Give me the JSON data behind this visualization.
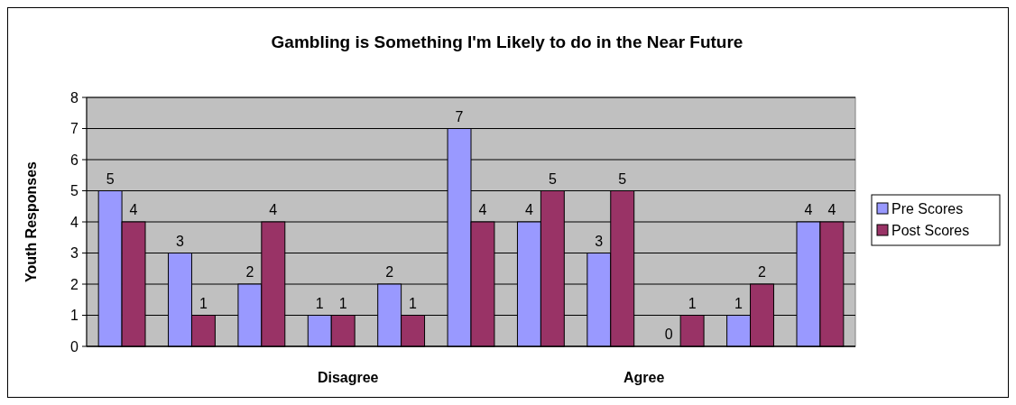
{
  "chart_data": {
    "type": "bar",
    "title": "Gambling is Something I'm Likely to do in the Near Future",
    "ylabel": "Youth Responses",
    "categories": [
      null,
      null,
      null,
      null,
      null,
      null,
      null,
      null,
      null,
      null,
      null
    ],
    "series": [
      {
        "name": "Pre Scores",
        "color": "#9999ff",
        "values": [
          5,
          3,
          2,
          1,
          2,
          7,
          4,
          3,
          0,
          1,
          4
        ]
      },
      {
        "name": "Post Scores",
        "color": "#993366",
        "values": [
          4,
          1,
          4,
          1,
          1,
          4,
          5,
          5,
          1,
          2,
          4
        ]
      }
    ],
    "annotations": [
      "Disagree",
      "Agree"
    ],
    "ylim": [
      0,
      8
    ],
    "yticks": [
      0,
      1,
      2,
      3,
      4,
      5,
      6,
      7,
      8
    ],
    "grid": "y",
    "legend": "right",
    "data_labels": true
  }
}
